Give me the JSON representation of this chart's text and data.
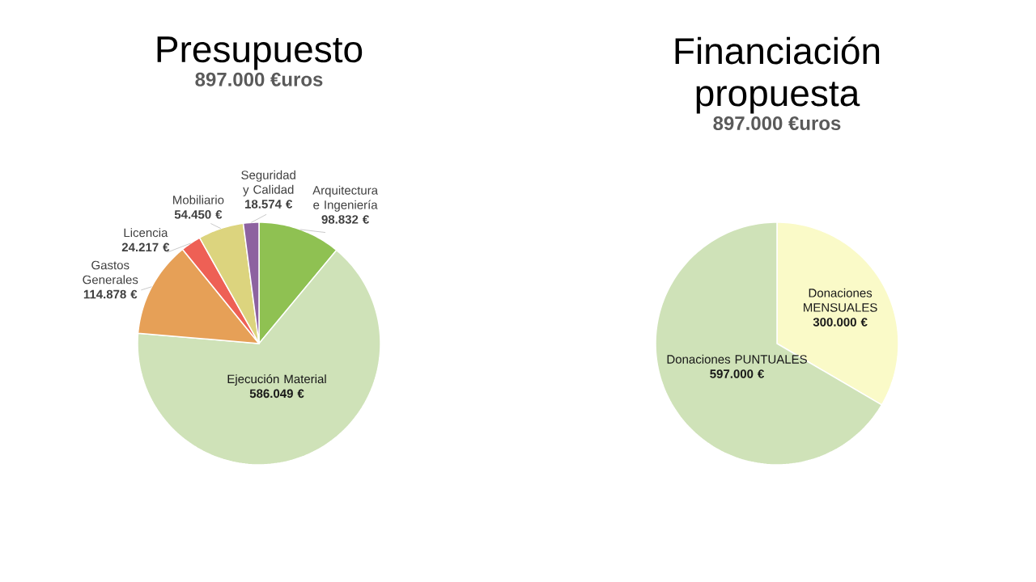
{
  "chart_data": [
    {
      "type": "pie",
      "title": "Presupuesto",
      "subtitle": "897.000 €uros",
      "categories": [
        "Arquitectura e Ingeniería",
        "Ejecución Material",
        "Gastos Generales",
        "Licencia",
        "Mobiliario",
        "Seguridad y Calidad"
      ],
      "values": [
        98832,
        586049,
        114878,
        24217,
        54450,
        18574
      ],
      "value_labels": [
        "98.832 €",
        "586.049 €",
        "114.878 €",
        "24.217 €",
        "54.450 €",
        "18.574 €"
      ],
      "colors": [
        "#8fc152",
        "#cfe2b8",
        "#e6a057",
        "#ee6055",
        "#dcd47e",
        "#8d62a0"
      ]
    },
    {
      "type": "pie",
      "title": "Financiación propuesta",
      "subtitle": "897.000 €uros",
      "categories": [
        "Donaciones MENSUALES",
        "Donaciones PUNTUALES"
      ],
      "values": [
        300000,
        597000
      ],
      "value_labels": [
        "300.000 €",
        "597.000 €"
      ],
      "colors": [
        "#fafac8",
        "#cfe2b8"
      ]
    }
  ]
}
